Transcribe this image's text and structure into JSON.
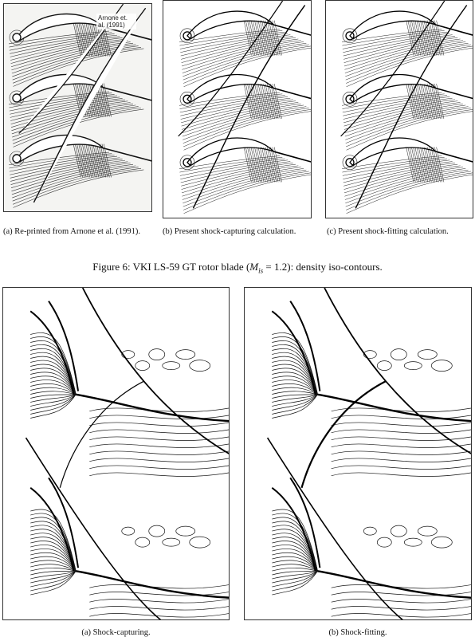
{
  "figure6": {
    "panels": [
      {
        "id": "a",
        "caption": "(a) Re-printed from Arnone et al. (1991).",
        "inset_label": "Arnone et. al. (1991)"
      },
      {
        "id": "b",
        "caption": "(b) Present shock-capturing calculation."
      },
      {
        "id": "c",
        "caption": "(c) Present shock-fitting calculation."
      }
    ],
    "caption_prefix": "Figure 6: VKI LS-59 GT rotor blade (",
    "caption_math_main": "M",
    "caption_math_sub": "is",
    "caption_math_rest": " = 1.2",
    "caption_suffix": "): density iso-contours."
  },
  "figure7": {
    "panels": [
      {
        "id": "a",
        "caption": "(a) Shock-capturing."
      },
      {
        "id": "b",
        "caption": "(b) Shock-fitting."
      }
    ]
  }
}
